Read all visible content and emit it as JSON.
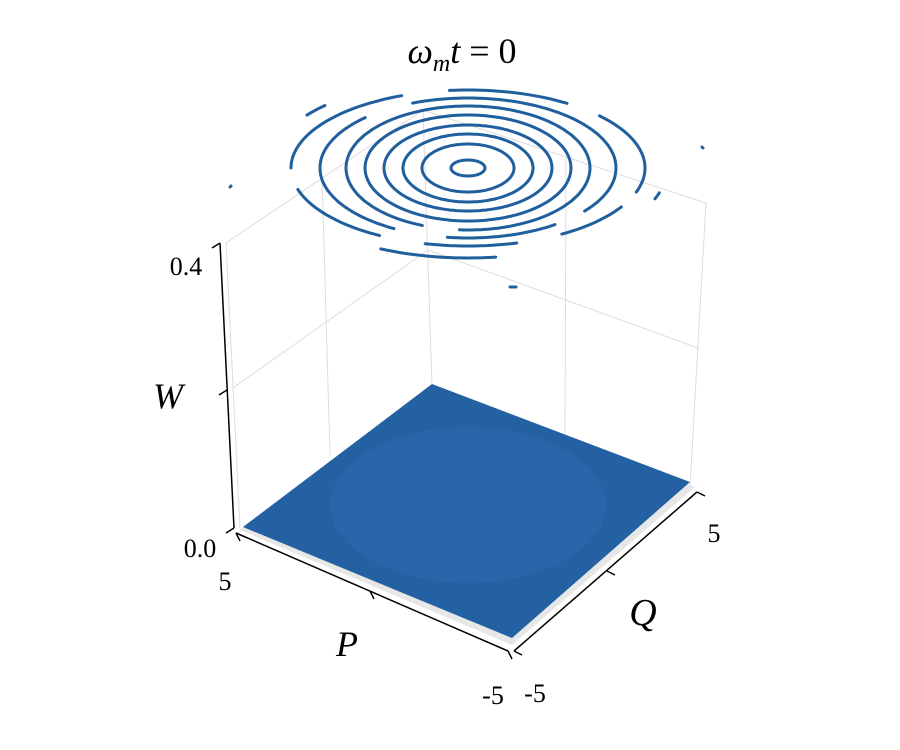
{
  "chart_data": {
    "type": "surface",
    "title": {
      "omega": "ω",
      "sub": "m",
      "t": "t",
      "eq": " = ",
      "value": "0"
    },
    "axes": {
      "x": {
        "label": "Q",
        "lim": [
          -5,
          5
        ],
        "tick_labels": [
          "-5",
          "5"
        ]
      },
      "y": {
        "label": "P",
        "lim": [
          -5,
          5
        ],
        "tick_labels": [
          "-5",
          "5"
        ]
      },
      "z": {
        "label": "W",
        "lim": [
          0.0,
          0.4
        ],
        "tick_labels": [
          "0.0",
          "0.4"
        ]
      }
    },
    "grid": true,
    "surface": {
      "description_value": "W(Q,P) ≈ 0 over the whole plane",
      "color": "#2361a3"
    },
    "contours": {
      "projected_on": "top",
      "color": "#2361a3",
      "count": 8
    }
  },
  "colors": {
    "surface": "#2361a3",
    "surface_light": "#2d6bb0",
    "contour": "#1f5f9e",
    "grid": "#d8d8d8"
  }
}
